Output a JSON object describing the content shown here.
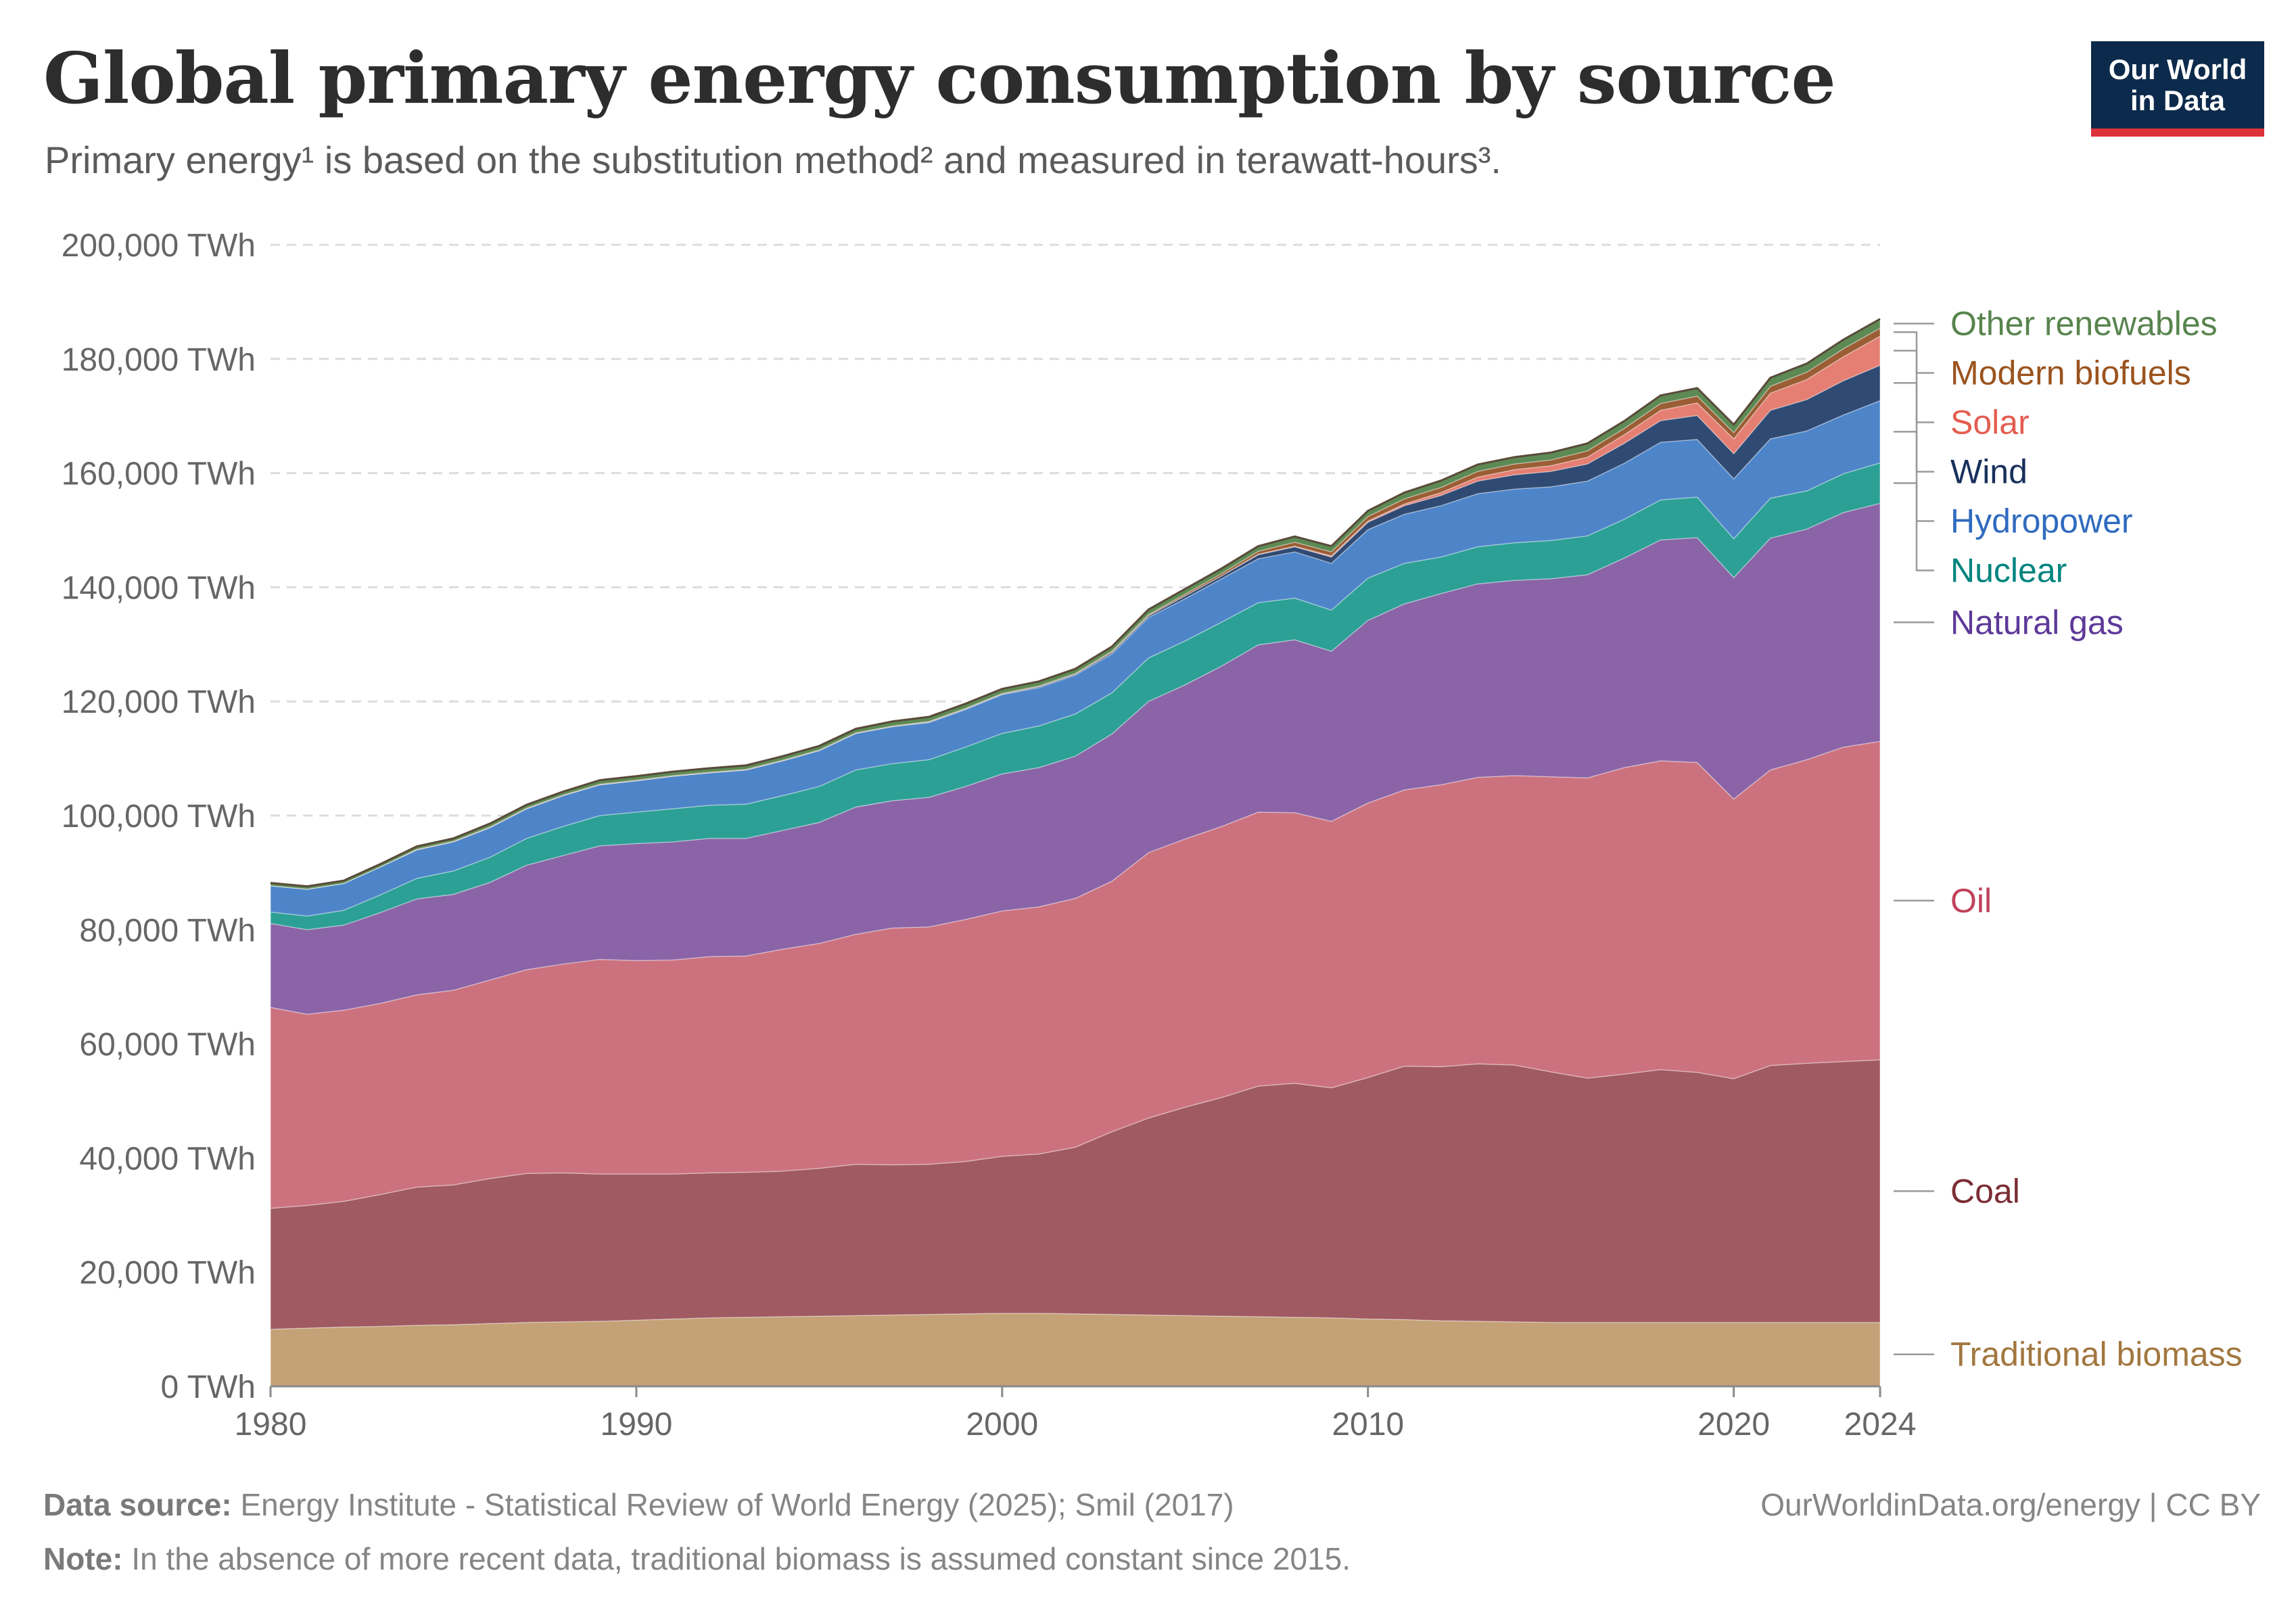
{
  "header": {
    "title": "Global primary energy consumption by source",
    "subtitle": "Primary energy¹ is based on the substitution method² and measured in terawatt-hours³.",
    "logo_line1": "Our World",
    "logo_line2": "in Data"
  },
  "footer": {
    "source_label": "Data source:",
    "source_text": "Energy Institute - Statistical Review of World Energy (2025); Smil (2017)",
    "note_label": "Note:",
    "note_text": "In the absence of more recent data, traditional biomass is assumed constant since 2015.",
    "url": "OurWorldinData.org/energy | CC BY"
  },
  "colors": {
    "logo_bg": "#0c2a4b",
    "logo_accent": "#dc3139"
  },
  "chart_data": {
    "type": "area",
    "stacked": true,
    "title": "Global primary energy consumption by source",
    "subtitle": "Primary energy¹ is based on the substitution method² and measured in terawatt-hours³.",
    "ylim": [
      0,
      200000
    ],
    "yticks": [
      0,
      20000,
      40000,
      60000,
      80000,
      100000,
      120000,
      140000,
      160000,
      180000,
      200000
    ],
    "ytick_labels": [
      "0 TWh",
      "20,000 TWh",
      "40,000 TWh",
      "60,000 TWh",
      "80,000 TWh",
      "100,000 TWh",
      "120,000 TWh",
      "140,000 TWh",
      "160,000 TWh",
      "180,000 TWh",
      "200,000 TWh"
    ],
    "xlim": [
      1980,
      2024
    ],
    "xticks": [
      1980,
      1990,
      2000,
      2010,
      2020,
      2024
    ],
    "xtick_labels": [
      "1980",
      "1990",
      "2000",
      "2010",
      "2020",
      "2024"
    ],
    "grid": "horizontal dashed",
    "legend": "right, labels aligned to series",
    "x": [
      1980,
      1981,
      1982,
      1983,
      1984,
      1985,
      1986,
      1987,
      1988,
      1989,
      1990,
      1991,
      1992,
      1993,
      1994,
      1995,
      1996,
      1997,
      1998,
      1999,
      2000,
      2001,
      2002,
      2003,
      2004,
      2005,
      2006,
      2007,
      2008,
      2009,
      2010,
      2011,
      2012,
      2013,
      2014,
      2015,
      2016,
      2017,
      2018,
      2019,
      2020,
      2021,
      2022,
      2023,
      2024
    ],
    "series": [
      {
        "name": "Traditional biomass",
        "color": "#c4a176",
        "label_color": "#a2773f",
        "values": [
          10000,
          10200,
          10400,
          10500,
          10700,
          10800,
          11000,
          11200,
          11300,
          11400,
          11600,
          11800,
          12000,
          12100,
          12200,
          12300,
          12400,
          12500,
          12600,
          12700,
          12800,
          12800,
          12700,
          12600,
          12500,
          12400,
          12300,
          12200,
          12100,
          12000,
          11800,
          11700,
          11500,
          11400,
          11300,
          11200,
          11200,
          11200,
          11200,
          11200,
          11200,
          11200,
          11200,
          11200,
          11200
        ]
      },
      {
        "name": "Coal",
        "color": "#a05a61",
        "label_color": "#7b2c33",
        "values": [
          21200,
          21500,
          22000,
          23100,
          24200,
          24500,
          25400,
          26100,
          26100,
          25800,
          25600,
          25400,
          25400,
          25400,
          25500,
          25900,
          26500,
          26300,
          26300,
          26700,
          27500,
          27900,
          29200,
          32000,
          34500,
          36500,
          38300,
          40400,
          41000,
          40300,
          42300,
          44400,
          44500,
          45100,
          45000,
          43900,
          42800,
          43500,
          44300,
          43800,
          42700,
          45000,
          45400,
          45700,
          46000
        ]
      },
      {
        "name": "Oil",
        "color": "#cc727f",
        "label_color": "#c0425b",
        "values": [
          35200,
          33500,
          33500,
          33500,
          33700,
          34100,
          34800,
          35700,
          36600,
          37600,
          37400,
          37500,
          37900,
          37900,
          38900,
          39400,
          40300,
          41500,
          41600,
          42400,
          43000,
          43300,
          43600,
          43900,
          46500,
          47000,
          47500,
          48000,
          47400,
          46700,
          48100,
          48400,
          49400,
          50200,
          50700,
          51700,
          52600,
          53700,
          54100,
          54300,
          49000,
          51800,
          53200,
          55100,
          55800
        ]
      },
      {
        "name": "Natural gas",
        "color": "#8a64a7",
        "label_color": "#5d3999",
        "values": [
          14700,
          14800,
          14900,
          15900,
          16800,
          16800,
          17100,
          18300,
          19000,
          19900,
          20500,
          20700,
          20700,
          20600,
          20800,
          21200,
          22300,
          22300,
          22700,
          23300,
          24000,
          24400,
          24900,
          25800,
          26500,
          27000,
          28100,
          29300,
          30300,
          29800,
          32000,
          32600,
          33500,
          33900,
          34200,
          34700,
          35600,
          36700,
          38700,
          39400,
          38800,
          40600,
          40400,
          41100,
          41700
        ]
      },
      {
        "name": "Nuclear",
        "color": "#2ca095",
        "label_color": "#00847e",
        "values": [
          2000,
          2400,
          2600,
          3100,
          3600,
          4100,
          4400,
          4700,
          5100,
          5300,
          5500,
          5800,
          5800,
          6000,
          6100,
          6300,
          6500,
          6500,
          6600,
          6900,
          7100,
          7300,
          7400,
          7200,
          7600,
          7700,
          7700,
          7400,
          7300,
          7200,
          7400,
          7100,
          6400,
          6500,
          6600,
          6700,
          6800,
          6800,
          7000,
          7100,
          6800,
          7000,
          6700,
          6800,
          7100
        ]
      },
      {
        "name": "Hydropower",
        "color": "#4e85c9",
        "label_color": "#2f6bbf",
        "values": [
          4600,
          4700,
          4700,
          4900,
          5000,
          5100,
          5200,
          5200,
          5400,
          5400,
          5500,
          5700,
          5700,
          6000,
          6100,
          6300,
          6400,
          6500,
          6500,
          6600,
          6800,
          6700,
          6800,
          6800,
          7100,
          7400,
          7600,
          7700,
          8100,
          8200,
          8500,
          8600,
          9000,
          9300,
          9400,
          9400,
          9600,
          9800,
          10100,
          10100,
          10500,
          10400,
          10500,
          10300,
          10900
        ]
      },
      {
        "name": "Wind",
        "color": "#2f4a73",
        "label_color": "#18305c",
        "values": [
          0,
          0,
          0,
          0,
          0,
          0,
          0,
          0,
          0,
          0,
          0,
          0,
          0,
          0,
          0,
          0,
          0,
          0,
          100,
          100,
          100,
          200,
          200,
          300,
          300,
          500,
          500,
          700,
          900,
          1100,
          1300,
          1500,
          1800,
          2200,
          2500,
          2700,
          3000,
          3500,
          3800,
          4200,
          4400,
          5000,
          5500,
          6000,
          6200
        ]
      },
      {
        "name": "Solar",
        "color": "#e57f73",
        "label_color": "#e35d50",
        "values": [
          0,
          0,
          0,
          0,
          0,
          0,
          0,
          0,
          0,
          0,
          0,
          0,
          0,
          0,
          0,
          0,
          0,
          0,
          0,
          0,
          0,
          0,
          0,
          0,
          0,
          0,
          0,
          100,
          100,
          200,
          200,
          300,
          500,
          700,
          900,
          1000,
          1200,
          1500,
          1800,
          2200,
          2600,
          3000,
          3500,
          4200,
          5100
        ]
      },
      {
        "name": "Modern biofuels",
        "color": "#9b5d34",
        "label_color": "#9b531e",
        "values": [
          0,
          0,
          0,
          0,
          100,
          100,
          100,
          100,
          100,
          100,
          100,
          100,
          100,
          100,
          100,
          100,
          100,
          100,
          100,
          100,
          100,
          100,
          100,
          200,
          200,
          300,
          400,
          500,
          700,
          700,
          800,
          900,
          900,
          1000,
          1000,
          1000,
          1100,
          1100,
          1200,
          1200,
          1100,
          1200,
          1300,
          1400,
          1400
        ]
      },
      {
        "name": "Other renewables",
        "color": "#5d8a54",
        "label_color": "#58844d",
        "values": [
          500,
          500,
          500,
          500,
          500,
          500,
          600,
          600,
          600,
          700,
          700,
          700,
          700,
          700,
          700,
          700,
          700,
          800,
          800,
          800,
          800,
          800,
          800,
          800,
          900,
          900,
          900,
          900,
          1000,
          1000,
          1000,
          1100,
          1200,
          1200,
          1200,
          1300,
          1300,
          1300,
          1400,
          1400,
          1400,
          1500,
          1500,
          1600,
          1600
        ]
      }
    ]
  }
}
